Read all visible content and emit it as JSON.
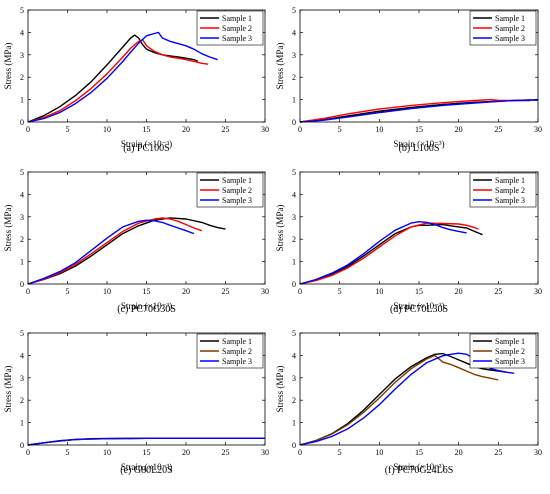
{
  "figure": {
    "panel_layout": "3 rows x 2 columns"
  },
  "chart_data": [
    {
      "type": "line",
      "caption": "(a) PC100S",
      "xlabel": "Strain (×10⁻³)",
      "ylabel": "Stress (MPa)",
      "xlim": [
        0,
        30
      ],
      "ylim": [
        0,
        5
      ],
      "xticks": [
        0,
        5,
        10,
        15,
        20,
        25,
        30
      ],
      "yticks": [
        0,
        1,
        2,
        3,
        4,
        5
      ],
      "legend_position": "top-right",
      "series": [
        {
          "name": "Sample 1",
          "color": "#000000",
          "x": [
            0,
            2,
            4,
            6,
            8,
            10,
            11,
            12,
            13,
            13.5,
            14,
            14.5,
            15,
            16,
            17,
            18,
            19,
            20,
            21,
            21.5
          ],
          "y": [
            0,
            0.28,
            0.68,
            1.18,
            1.8,
            2.55,
            2.95,
            3.35,
            3.75,
            3.88,
            3.75,
            3.45,
            3.25,
            3.1,
            3.0,
            2.95,
            2.9,
            2.85,
            2.78,
            2.72
          ]
        },
        {
          "name": "Sample 2",
          "color": "#ff0000",
          "x": [
            0,
            2,
            4,
            6,
            8,
            10,
            12,
            13,
            14,
            14.5,
            15,
            16,
            17,
            18,
            19,
            20,
            21,
            22,
            22.8
          ],
          "y": [
            0,
            0.2,
            0.5,
            0.95,
            1.5,
            2.15,
            2.9,
            3.3,
            3.6,
            3.68,
            3.4,
            3.15,
            3.0,
            2.9,
            2.85,
            2.78,
            2.7,
            2.62,
            2.58
          ]
        },
        {
          "name": "Sample 3",
          "color": "#0000ff",
          "x": [
            0,
            2,
            4,
            6,
            8,
            10,
            12,
            13,
            14,
            15,
            15.5,
            16,
            16.5,
            17,
            18,
            19,
            20,
            21,
            22,
            23,
            24
          ],
          "y": [
            0,
            0.15,
            0.42,
            0.82,
            1.32,
            1.95,
            2.7,
            3.12,
            3.52,
            3.85,
            3.9,
            3.95,
            4.0,
            3.75,
            3.6,
            3.5,
            3.4,
            3.25,
            3.05,
            2.9,
            2.78
          ]
        }
      ]
    },
    {
      "type": "line",
      "caption": "(b) L100S",
      "xlabel": "Strain (×10⁻³)",
      "ylabel": "Stress (MPa)",
      "xlim": [
        0,
        30
      ],
      "ylim": [
        0,
        5
      ],
      "xticks": [
        0,
        5,
        10,
        15,
        20,
        25,
        30
      ],
      "yticks": [
        0,
        1,
        2,
        3,
        4,
        5
      ],
      "legend_position": "top-right",
      "series": [
        {
          "name": "Sample 1",
          "color": "#000000",
          "x": [
            0,
            3,
            6,
            10,
            14,
            18,
            22,
            25,
            27,
            29,
            30
          ],
          "y": [
            0,
            0.1,
            0.27,
            0.48,
            0.65,
            0.78,
            0.88,
            0.93,
            0.96,
            0.98,
            0.98
          ]
        },
        {
          "name": "Sample 2",
          "color": "#ff0000",
          "x": [
            0,
            3,
            6,
            10,
            14,
            18,
            22,
            24,
            25,
            27,
            29
          ],
          "y": [
            0,
            0.16,
            0.36,
            0.58,
            0.74,
            0.86,
            0.96,
            1.0,
            0.97,
            0.96,
            0.95
          ]
        },
        {
          "name": "Sample 3",
          "color": "#0000ff",
          "x": [
            0,
            3,
            6,
            10,
            14,
            18,
            22,
            25,
            27,
            29,
            30
          ],
          "y": [
            0,
            0.08,
            0.22,
            0.42,
            0.6,
            0.74,
            0.85,
            0.92,
            0.96,
            0.98,
            0.98
          ]
        }
      ]
    },
    {
      "type": "line",
      "caption": "(c) PC70G30S",
      "xlabel": "Strain (×10⁻³)",
      "ylabel": "Stress (MPa)",
      "xlim": [
        0,
        30
      ],
      "ylim": [
        0,
        5
      ],
      "xticks": [
        0,
        5,
        10,
        15,
        20,
        25,
        30
      ],
      "yticks": [
        0,
        1,
        2,
        3,
        4,
        5
      ],
      "legend_position": "top-right",
      "series": [
        {
          "name": "Sample 1",
          "color": "#000000",
          "x": [
            0,
            2,
            4,
            6,
            8,
            10,
            12,
            14,
            16,
            18,
            20,
            22,
            23,
            24,
            25
          ],
          "y": [
            0,
            0.2,
            0.45,
            0.8,
            1.25,
            1.75,
            2.25,
            2.6,
            2.85,
            2.95,
            2.9,
            2.75,
            2.62,
            2.52,
            2.45
          ]
        },
        {
          "name": "Sample 2",
          "color": "#ff0000",
          "x": [
            0,
            2,
            4,
            6,
            8,
            10,
            12,
            14,
            16,
            17,
            18,
            19,
            20,
            21,
            22
          ],
          "y": [
            0,
            0.22,
            0.5,
            0.88,
            1.35,
            1.85,
            2.35,
            2.72,
            2.9,
            2.95,
            2.9,
            2.8,
            2.65,
            2.5,
            2.38
          ]
        },
        {
          "name": "Sample 3",
          "color": "#0000ff",
          "x": [
            0,
            2,
            4,
            6,
            8,
            10,
            12,
            14,
            15,
            16,
            17,
            18,
            19,
            20,
            21
          ],
          "y": [
            0,
            0.25,
            0.55,
            0.95,
            1.5,
            2.05,
            2.55,
            2.8,
            2.85,
            2.82,
            2.75,
            2.62,
            2.5,
            2.38,
            2.25
          ]
        }
      ]
    },
    {
      "type": "line",
      "caption": "(d) PC70L30S",
      "xlabel": "Strain (×10⁻³)",
      "ylabel": "Stress (MPa)",
      "xlim": [
        0,
        30
      ],
      "ylim": [
        0,
        5
      ],
      "xticks": [
        0,
        5,
        10,
        15,
        20,
        25,
        30
      ],
      "yticks": [
        0,
        1,
        2,
        3,
        4,
        5
      ],
      "legend_position": "top-right",
      "series": [
        {
          "name": "Sample 1",
          "color": "#000000",
          "x": [
            0,
            2,
            4,
            6,
            8,
            10,
            12,
            14,
            15,
            16,
            18,
            19,
            20,
            21,
            22,
            23
          ],
          "y": [
            0,
            0.18,
            0.42,
            0.78,
            1.25,
            1.75,
            2.25,
            2.55,
            2.62,
            2.62,
            2.65,
            2.6,
            2.55,
            2.5,
            2.35,
            2.2
          ]
        },
        {
          "name": "Sample 2",
          "color": "#ff0000",
          "x": [
            0,
            2,
            4,
            6,
            8,
            10,
            12,
            14,
            16,
            18,
            20,
            21,
            22,
            22.5
          ],
          "y": [
            0,
            0.15,
            0.38,
            0.72,
            1.15,
            1.65,
            2.15,
            2.55,
            2.72,
            2.7,
            2.68,
            2.62,
            2.52,
            2.45
          ]
        },
        {
          "name": "Sample 3",
          "color": "#0000ff",
          "x": [
            0,
            2,
            4,
            6,
            8,
            10,
            12,
            14,
            15,
            16,
            17,
            18,
            19,
            20,
            21
          ],
          "y": [
            0,
            0.2,
            0.48,
            0.85,
            1.35,
            1.9,
            2.4,
            2.72,
            2.78,
            2.75,
            2.65,
            2.52,
            2.42,
            2.35,
            2.28
          ]
        }
      ]
    },
    {
      "type": "line",
      "caption": "(e) G80L20S",
      "xlabel": "Strain (×10⁻³)",
      "ylabel": "Stress (MPa)",
      "xlim": [
        0,
        30
      ],
      "ylim": [
        0,
        5
      ],
      "xticks": [
        0,
        5,
        10,
        15,
        20,
        25,
        30
      ],
      "yticks": [
        0,
        1,
        2,
        3,
        4,
        5
      ],
      "legend_position": "top-right",
      "series": [
        {
          "name": "Sample 1",
          "color": "#000000",
          "x": [
            0,
            2,
            4,
            6,
            8,
            10,
            15,
            20,
            25,
            30
          ],
          "y": [
            0,
            0.1,
            0.18,
            0.24,
            0.27,
            0.28,
            0.3,
            0.3,
            0.3,
            0.3
          ]
        },
        {
          "name": "Sample 2",
          "color": "#7a3a00",
          "x": [
            0,
            2,
            4,
            6,
            8,
            10,
            15,
            20,
            25,
            30
          ],
          "y": [
            0,
            0.1,
            0.18,
            0.24,
            0.27,
            0.28,
            0.3,
            0.3,
            0.3,
            0.3
          ]
        },
        {
          "name": "Sample 3",
          "color": "#0000ff",
          "x": [
            0,
            2,
            4,
            6,
            8,
            10,
            15,
            20,
            25,
            30
          ],
          "y": [
            0,
            0.1,
            0.19,
            0.25,
            0.28,
            0.29,
            0.3,
            0.3,
            0.3,
            0.3
          ]
        }
      ]
    },
    {
      "type": "line",
      "caption": "(f) PC70G24L6S",
      "xlabel": "Strain (×10⁻³)",
      "ylabel": "Stress (MPa)",
      "xlim": [
        0,
        30
      ],
      "ylim": [
        0,
        5
      ],
      "xticks": [
        0,
        5,
        10,
        15,
        20,
        25,
        30
      ],
      "yticks": [
        0,
        1,
        2,
        3,
        4,
        5
      ],
      "legend_position": "top-right",
      "series": [
        {
          "name": "Sample 1",
          "color": "#000000",
          "x": [
            0,
            2,
            4,
            6,
            8,
            10,
            12,
            14,
            16,
            17,
            18,
            19,
            20,
            21,
            22,
            23,
            24,
            25,
            26
          ],
          "y": [
            0,
            0.2,
            0.5,
            0.95,
            1.55,
            2.25,
            2.95,
            3.5,
            3.9,
            4.05,
            4.08,
            3.95,
            3.8,
            3.65,
            3.5,
            3.4,
            3.35,
            3.3,
            3.25
          ]
        },
        {
          "name": "Sample 2",
          "color": "#7a3a00",
          "x": [
            0,
            2,
            4,
            6,
            8,
            10,
            12,
            14,
            16,
            17,
            17.5,
            18,
            19,
            20,
            21,
            22,
            23,
            24,
            25
          ],
          "y": [
            0,
            0.2,
            0.48,
            0.9,
            1.45,
            2.1,
            2.8,
            3.4,
            3.85,
            4.0,
            3.85,
            3.7,
            3.6,
            3.45,
            3.3,
            3.15,
            3.05,
            2.98,
            2.9
          ]
        },
        {
          "name": "Sample 3",
          "color": "#0000ff",
          "x": [
            0,
            2,
            4,
            6,
            8,
            10,
            12,
            14,
            16,
            18,
            19,
            20,
            21,
            22,
            23,
            24,
            25,
            26,
            27
          ],
          "y": [
            0,
            0.15,
            0.38,
            0.72,
            1.2,
            1.8,
            2.5,
            3.15,
            3.68,
            3.98,
            4.05,
            4.1,
            4.05,
            3.85,
            3.6,
            3.42,
            3.32,
            3.25,
            3.2
          ]
        }
      ]
    }
  ]
}
